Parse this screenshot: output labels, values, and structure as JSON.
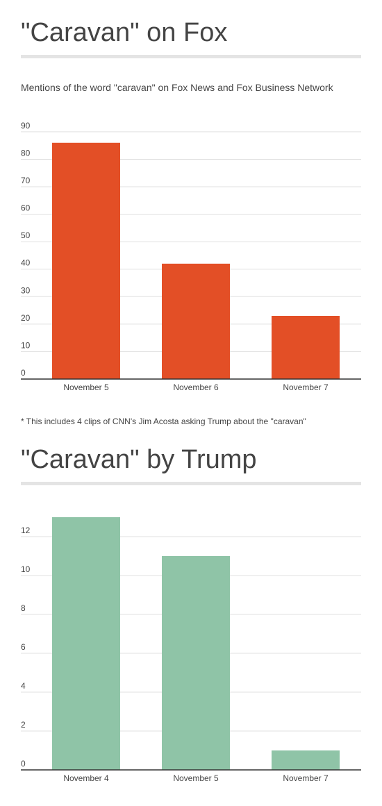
{
  "chart_data": [
    {
      "type": "bar",
      "title": "\"Caravan\" on Fox",
      "subtitle": "Mentions of the word \"caravan\" on Fox News and Fox Business Network",
      "categories": [
        "November 5",
        "November 6",
        "November 7"
      ],
      "values": [
        86,
        42,
        23
      ],
      "yticks": [
        0,
        10,
        20,
        30,
        40,
        50,
        60,
        70,
        80,
        90
      ],
      "ylim": [
        0,
        92
      ],
      "grid": true,
      "bar_color": "#e34f26",
      "footnote": "* This includes 4 clips of CNN's Jim Acosta asking Trump about the \"caravan\""
    },
    {
      "type": "bar",
      "title": "\"Caravan\" by Trump",
      "categories": [
        "November 4",
        "November 5",
        "November 7"
      ],
      "values": [
        13,
        11,
        1
      ],
      "yticks": [
        0,
        2,
        4,
        6,
        8,
        10,
        12
      ],
      "ylim": [
        0,
        13
      ],
      "grid": true,
      "bar_color": "#8fc4a7"
    }
  ]
}
